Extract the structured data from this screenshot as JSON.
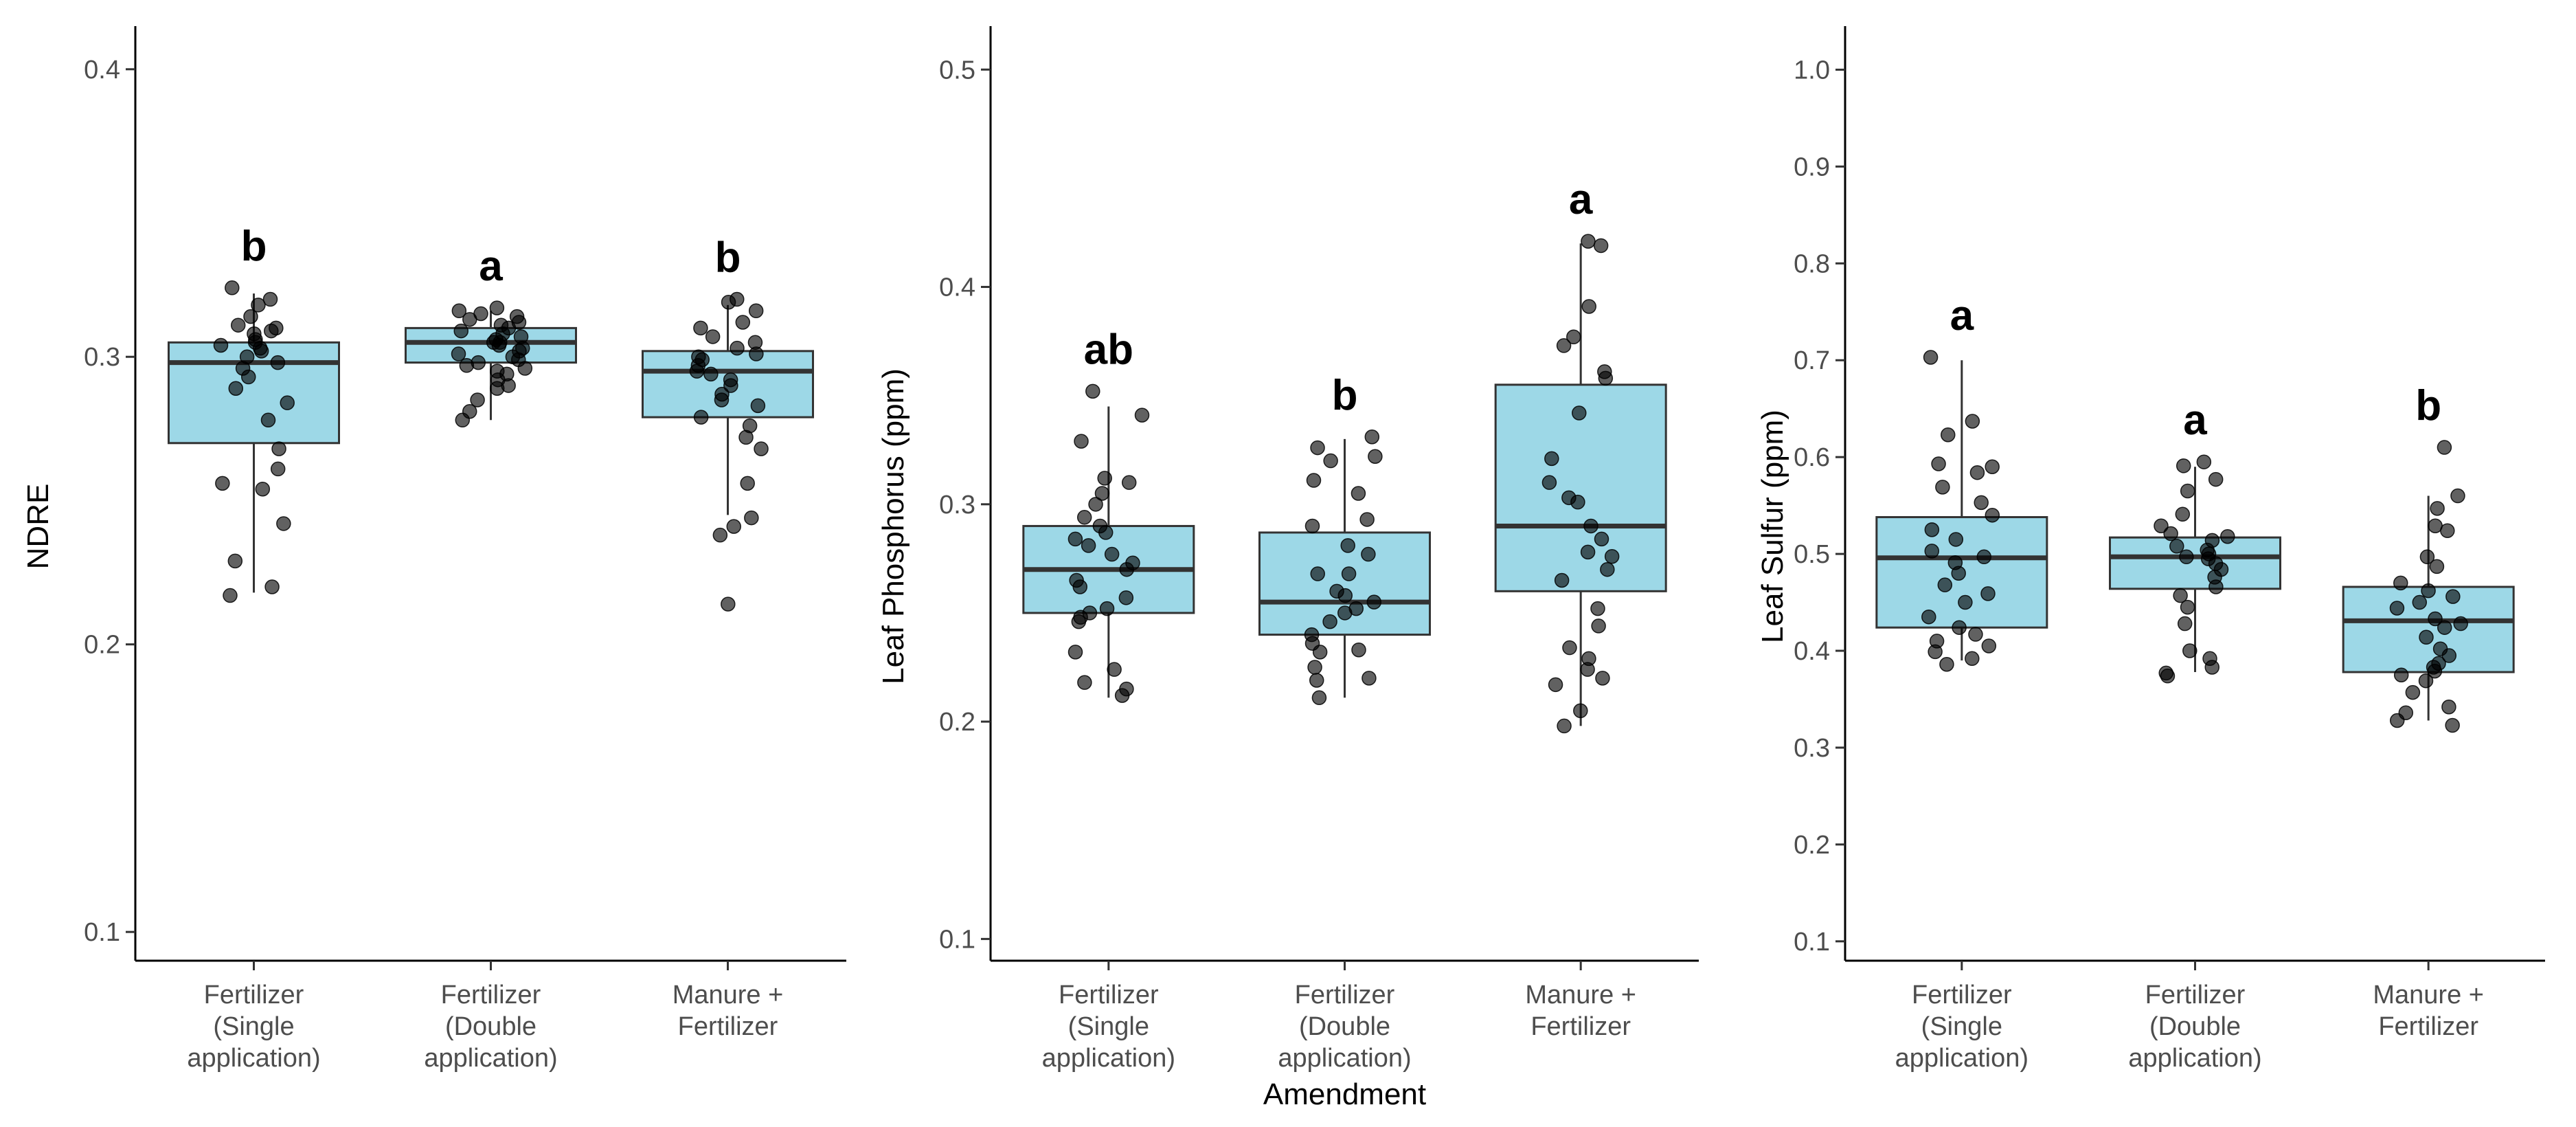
{
  "chart_data": [
    {
      "type": "boxplot",
      "ylabel": "NDRE",
      "xlabel": "",
      "ylim": [
        0.09,
        0.415
      ],
      "yticks": [
        0.1,
        0.2,
        0.3,
        0.4
      ],
      "ytick_labels": [
        "0.1",
        "0.2",
        "0.3",
        "0.4"
      ],
      "categories": [
        [
          "Fertilizer",
          "(Single",
          "application)"
        ],
        [
          "Fertilizer",
          "(Double",
          "application)"
        ],
        [
          "Manure +",
          "Fertilizer"
        ]
      ],
      "boxes": [
        {
          "min": 0.218,
          "q1": 0.27,
          "median": 0.298,
          "q3": 0.305,
          "max": 0.322,
          "letter": "b",
          "points": [
            0.324,
            0.32,
            0.318,
            0.314,
            0.311,
            0.31,
            0.309,
            0.308,
            0.306,
            0.305,
            0.304,
            0.303,
            0.302,
            0.3,
            0.298,
            0.296,
            0.293,
            0.289,
            0.284,
            0.278,
            0.268,
            0.261,
            0.256,
            0.254,
            0.242,
            0.229,
            0.22,
            0.217
          ]
        },
        {
          "min": 0.278,
          "q1": 0.298,
          "median": 0.305,
          "q3": 0.31,
          "max": 0.316,
          "letter": "a",
          "points": [
            0.317,
            0.316,
            0.315,
            0.314,
            0.313,
            0.312,
            0.311,
            0.31,
            0.309,
            0.308,
            0.307,
            0.306,
            0.305,
            0.305,
            0.304,
            0.303,
            0.302,
            0.301,
            0.3,
            0.299,
            0.298,
            0.297,
            0.296,
            0.295,
            0.294,
            0.292,
            0.29,
            0.289,
            0.285,
            0.281,
            0.278
          ]
        },
        {
          "min": 0.245,
          "q1": 0.279,
          "median": 0.295,
          "q3": 0.302,
          "max": 0.318,
          "letter": "b",
          "points": [
            0.32,
            0.319,
            0.316,
            0.312,
            0.31,
            0.307,
            0.305,
            0.303,
            0.301,
            0.3,
            0.299,
            0.297,
            0.295,
            0.294,
            0.292,
            0.29,
            0.287,
            0.285,
            0.283,
            0.279,
            0.276,
            0.272,
            0.268,
            0.256,
            0.244,
            0.241,
            0.238,
            0.214
          ]
        }
      ]
    },
    {
      "type": "boxplot",
      "ylabel": "Leaf Phosphorus (ppm)",
      "xlabel": "Amendment",
      "ylim": [
        0.09,
        0.52
      ],
      "yticks": [
        0.1,
        0.2,
        0.3,
        0.4,
        0.5
      ],
      "ytick_labels": [
        "0.1",
        "0.2",
        "0.3",
        "0.4",
        "0.5"
      ],
      "categories": [
        [
          "Fertilizer",
          "(Single",
          "application)"
        ],
        [
          "Fertilizer",
          "(Double",
          "application)"
        ],
        [
          "Manure +",
          "Fertilizer"
        ]
      ],
      "boxes": [
        {
          "min": 0.211,
          "q1": 0.25,
          "median": 0.27,
          "q3": 0.29,
          "max": 0.345,
          "letter": "ab",
          "points": [
            0.352,
            0.341,
            0.329,
            0.312,
            0.31,
            0.305,
            0.3,
            0.294,
            0.29,
            0.287,
            0.284,
            0.281,
            0.277,
            0.273,
            0.27,
            0.265,
            0.262,
            0.257,
            0.252,
            0.25,
            0.248,
            0.246,
            0.232,
            0.224,
            0.218,
            0.215,
            0.212
          ]
        },
        {
          "min": 0.211,
          "q1": 0.24,
          "median": 0.255,
          "q3": 0.287,
          "max": 0.33,
          "letter": "b",
          "points": [
            0.331,
            0.326,
            0.322,
            0.32,
            0.311,
            0.305,
            0.293,
            0.29,
            0.281,
            0.277,
            0.268,
            0.268,
            0.26,
            0.258,
            0.255,
            0.252,
            0.25,
            0.246,
            0.24,
            0.236,
            0.233,
            0.232,
            0.225,
            0.22,
            0.219,
            0.211
          ]
        },
        {
          "min": 0.198,
          "q1": 0.26,
          "median": 0.29,
          "q3": 0.355,
          "max": 0.42,
          "letter": "a",
          "points": [
            0.421,
            0.419,
            0.391,
            0.377,
            0.373,
            0.361,
            0.358,
            0.342,
            0.321,
            0.31,
            0.303,
            0.301,
            0.29,
            0.284,
            0.278,
            0.276,
            0.27,
            0.265,
            0.252,
            0.244,
            0.234,
            0.229,
            0.224,
            0.22,
            0.217,
            0.205,
            0.198
          ]
        }
      ]
    },
    {
      "type": "boxplot",
      "ylabel": "Leaf Sulfur (ppm)",
      "xlabel": "",
      "ylim": [
        0.08,
        1.045
      ],
      "yticks": [
        0.1,
        0.2,
        0.3,
        0.4,
        0.5,
        0.6,
        0.7,
        0.8,
        0.9,
        1.0
      ],
      "ytick_labels": [
        "0.1",
        "0.2",
        "0.3",
        "0.4",
        "0.5",
        "0.6",
        "0.7",
        "0.8",
        "0.9",
        "1.0"
      ],
      "categories": [
        [
          "Fertilizer",
          "(Single",
          "application)"
        ],
        [
          "Fertilizer",
          "(Double",
          "application)"
        ],
        [
          "Manure +",
          "Fertilizer"
        ]
      ],
      "boxes": [
        {
          "min": 0.39,
          "q1": 0.424,
          "median": 0.496,
          "q3": 0.538,
          "max": 0.7,
          "letter": "a",
          "points": [
            0.703,
            0.637,
            0.623,
            0.593,
            0.59,
            0.584,
            0.569,
            0.553,
            0.54,
            0.525,
            0.515,
            0.503,
            0.497,
            0.491,
            0.48,
            0.468,
            0.459,
            0.45,
            0.435,
            0.424,
            0.417,
            0.41,
            0.405,
            0.399,
            0.392,
            0.386
          ]
        },
        {
          "min": 0.378,
          "q1": 0.464,
          "median": 0.497,
          "q3": 0.517,
          "max": 0.59,
          "letter": "a",
          "points": [
            0.595,
            0.591,
            0.577,
            0.565,
            0.541,
            0.529,
            0.521,
            0.518,
            0.514,
            0.508,
            0.504,
            0.5,
            0.497,
            0.495,
            0.49,
            0.484,
            0.476,
            0.466,
            0.457,
            0.445,
            0.428,
            0.4,
            0.392,
            0.383,
            0.377,
            0.374
          ]
        },
        {
          "min": 0.328,
          "q1": 0.378,
          "median": 0.431,
          "q3": 0.466,
          "max": 0.56,
          "letter": "b",
          "points": [
            0.61,
            0.56,
            0.547,
            0.529,
            0.524,
            0.497,
            0.487,
            0.47,
            0.462,
            0.456,
            0.45,
            0.444,
            0.433,
            0.428,
            0.424,
            0.414,
            0.402,
            0.395,
            0.387,
            0.383,
            0.379,
            0.375,
            0.369,
            0.357,
            0.342,
            0.336,
            0.328,
            0.323
          ]
        }
      ]
    }
  ]
}
